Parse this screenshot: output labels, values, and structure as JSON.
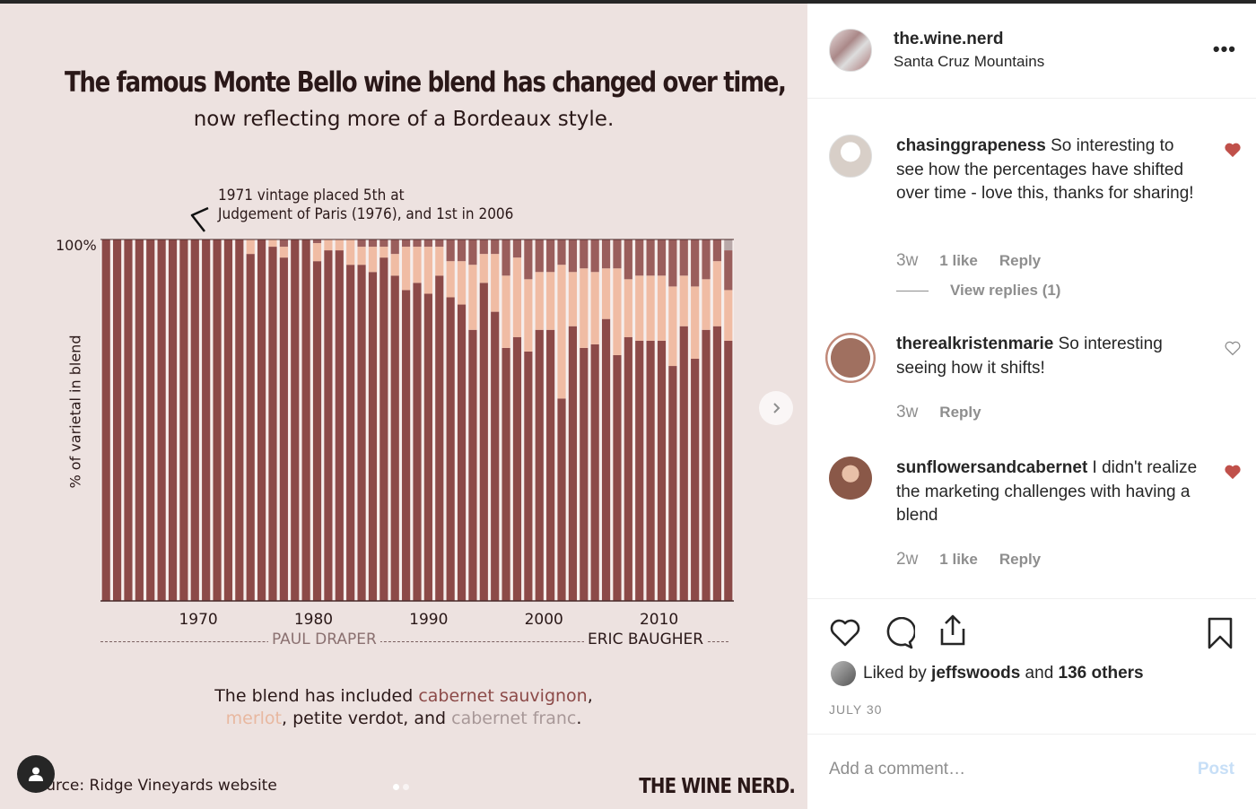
{
  "post": {
    "title": "The famous Monte Bello wine blend has changed over time,",
    "subtitle": "now reflecting more of a Bordeaux style.",
    "annotation_line1": "1971 vintage placed 5th at",
    "annotation_line2": "Judgement of Paris (1976), and 1st in 2006",
    "eras": [
      "PAUL DRAPER",
      "ERIC BAUGHER"
    ],
    "blend_line1_prefix": "The blend has included ",
    "blend_varietal_1": "cabernet sauvignon",
    "blend_line1_suffix": ",",
    "blend_varietal_2": "merlot",
    "blend_mid": ", petite verdot, and ",
    "blend_varietal_3": "cabernet franc",
    "blend_end": ".",
    "source": "Source: Ridge Vineyards website",
    "brand": "THE WINE NERD.",
    "icons": {
      "user_tag": "user-icon",
      "next": "chevron-right-icon"
    }
  },
  "chart_data": {
    "type": "bar",
    "stacked": true,
    "ylabel": "% of varietal in blend",
    "yticks": [
      "100%"
    ],
    "ylim": [
      0,
      100
    ],
    "x_ticks": [
      "1970",
      "1980",
      "1990",
      "2000",
      "2010"
    ],
    "x_start_year": 1962,
    "x_end_year": 2016,
    "colors": {
      "cabernet_sauvignon": "#8c4a48",
      "merlot": "#f0bca4",
      "petite_verdot": "#9a5e5c",
      "cabernet_franc": "#b8a8a8"
    },
    "series": [
      {
        "name": "cabernet sauvignon",
        "values": [
          100,
          100,
          100,
          100,
          100,
          100,
          100,
          100,
          100,
          100,
          100,
          100,
          100,
          96,
          100,
          98,
          95,
          100,
          100,
          94,
          97,
          97,
          93,
          93,
          91,
          95,
          90,
          86,
          88,
          85,
          90,
          84,
          82,
          75,
          88,
          80,
          70,
          73,
          69,
          75,
          75,
          56,
          76,
          70,
          71,
          78,
          68,
          73,
          72,
          72,
          72,
          65,
          76,
          67,
          75,
          76,
          72
        ]
      },
      {
        "name": "merlot",
        "values": [
          0,
          0,
          0,
          0,
          0,
          0,
          0,
          0,
          0,
          0,
          0,
          0,
          0,
          4,
          0,
          2,
          3,
          0,
          0,
          5,
          3,
          3,
          7,
          5,
          7,
          3,
          6,
          12,
          10,
          13,
          8,
          10,
          12,
          18,
          8,
          16,
          20,
          22,
          20,
          16,
          16,
          37,
          15,
          22,
          20,
          14,
          24,
          16,
          18,
          18,
          18,
          22,
          14,
          20,
          14,
          18,
          14
        ]
      },
      {
        "name": "petite verdot",
        "values": [
          0,
          0,
          0,
          0,
          0,
          0,
          0,
          0,
          0,
          0,
          0,
          0,
          0,
          0,
          0,
          0,
          2,
          0,
          0,
          1,
          0,
          0,
          0,
          2,
          2,
          2,
          4,
          2,
          2,
          2,
          2,
          6,
          6,
          7,
          4,
          4,
          10,
          5,
          11,
          9,
          9,
          7,
          9,
          8,
          9,
          8,
          8,
          11,
          10,
          10,
          10,
          13,
          10,
          13,
          11,
          6,
          11
        ]
      },
      {
        "name": "cabernet franc",
        "values": [
          0,
          0,
          0,
          0,
          0,
          0,
          0,
          0,
          0,
          0,
          0,
          0,
          0,
          0,
          0,
          0,
          0,
          0,
          0,
          0,
          0,
          0,
          0,
          0,
          0,
          0,
          0,
          0,
          0,
          0,
          0,
          0,
          0,
          0,
          0,
          0,
          0,
          0,
          0,
          0,
          0,
          0,
          0,
          0,
          0,
          0,
          0,
          0,
          0,
          0,
          0,
          0,
          0,
          0,
          0,
          0,
          3
        ]
      }
    ]
  },
  "sidebar": {
    "owner_name": "the.wine.nerd",
    "owner_location": "Santa Cruz Mountains",
    "more_label": "•••",
    "comments": [
      {
        "user": "chasinggrapeness",
        "text": " So interesting to see how the percentages have shifted over time - love this, thanks for sharing!",
        "time": "3w",
        "likes": "1 like",
        "reply": "Reply",
        "view_replies": "View replies (1)",
        "liked": true
      },
      {
        "user": "therealkristenmarie",
        "text": " So interesting seeing how it shifts!",
        "time": "3w",
        "reply": "Reply",
        "liked": false
      },
      {
        "user": "sunflowersandcabernet",
        "text": " I didn't realize the marketing challenges with having a blend",
        "time": "2w",
        "likes": "1 like",
        "reply": "Reply",
        "liked": true
      }
    ],
    "liked_by_prefix": "Liked by ",
    "liked_by_user": "jeffswoods",
    "liked_by_mid": " and ",
    "liked_by_count": "136 others",
    "date": "JULY 30",
    "comment_placeholder": "Add a comment…",
    "post_label": "Post",
    "heart_color": "#c0504a",
    "action_icons": [
      "heart-icon",
      "comment-icon",
      "share-icon",
      "bookmark-icon"
    ]
  }
}
